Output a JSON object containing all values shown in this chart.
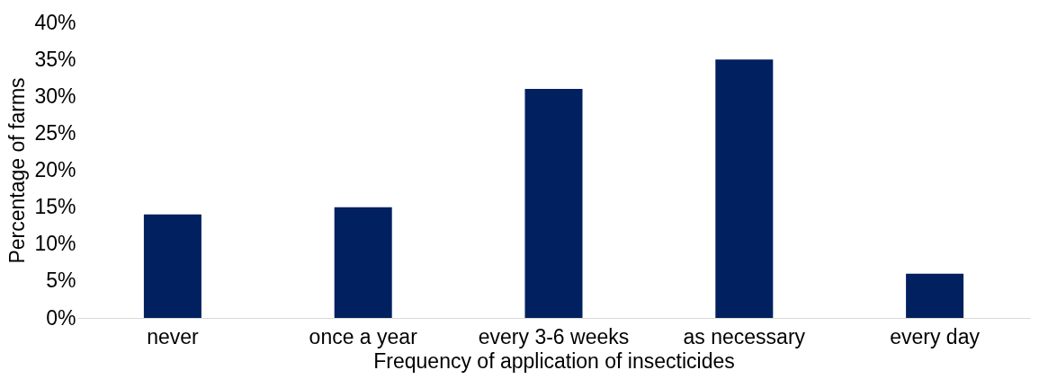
{
  "chart_data": {
    "type": "bar",
    "xlabel": "Frequency of application of insecticides",
    "ylabel": "Percentage of farms",
    "categories": [
      "never",
      "once a year",
      "every 3-6 weeks",
      "as necessary",
      "every day"
    ],
    "values": [
      14,
      15,
      31,
      35,
      6
    ],
    "color": "#002060",
    "ylim": [
      0,
      40
    ],
    "yticks": [
      {
        "value": 0,
        "label": "0%"
      },
      {
        "value": 5,
        "label": "5%"
      },
      {
        "value": 10,
        "label": "10%"
      },
      {
        "value": 15,
        "label": "15%"
      },
      {
        "value": 20,
        "label": "20%"
      },
      {
        "value": 25,
        "label": "25%"
      },
      {
        "value": 30,
        "label": "30%"
      },
      {
        "value": 35,
        "label": "35%"
      },
      {
        "value": 40,
        "label": "40%"
      }
    ],
    "grid": false
  }
}
